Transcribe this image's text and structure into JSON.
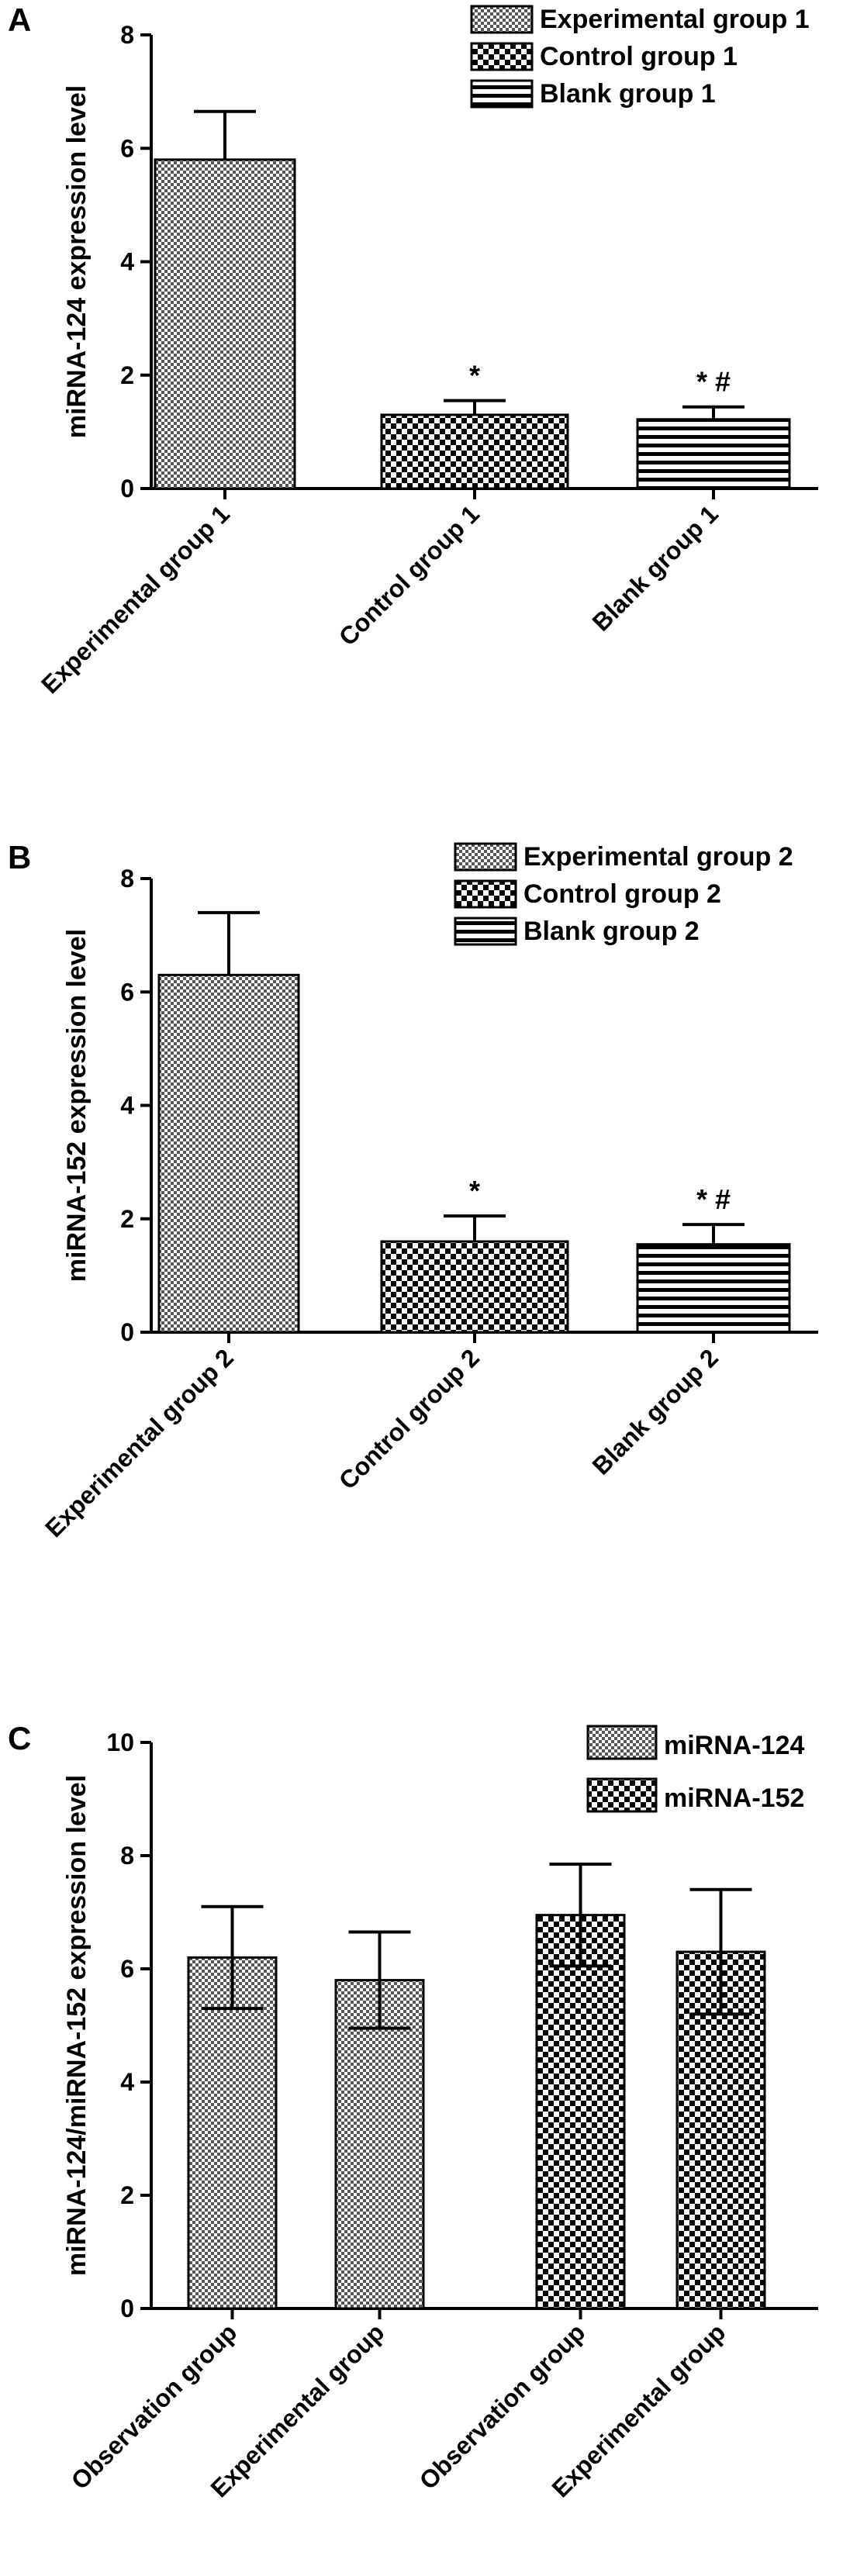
{
  "chart_data": [
    {
      "panel": "A",
      "type": "bar",
      "ylabel": "miRNA-124 expression level",
      "ylim": [
        0,
        8
      ],
      "yticks": [
        0,
        2,
        4,
        6,
        8
      ],
      "categories": [
        "Experimental group 1",
        "Control group 1",
        "Blank group 1"
      ],
      "values": [
        5.8,
        1.3,
        1.22
      ],
      "errors": [
        0.85,
        0.25,
        0.22
      ],
      "patterns": [
        "checker-fine",
        "checker-coarse",
        "horizontal"
      ],
      "annotations": [
        "",
        "*",
        "* #"
      ],
      "legend": [
        "Experimental group 1",
        "Control group 1",
        "Blank group 1"
      ],
      "legend_position": "top-right",
      "grid": false
    },
    {
      "panel": "B",
      "type": "bar",
      "ylabel": "miRNA-152 expression level",
      "ylim": [
        0,
        8
      ],
      "yticks": [
        0,
        2,
        4,
        6,
        8
      ],
      "categories": [
        "Experimental group 2",
        "Control group 2",
        "Blank group 2"
      ],
      "values": [
        6.3,
        1.6,
        1.55
      ],
      "errors": [
        1.1,
        0.45,
        0.35
      ],
      "patterns": [
        "checker-fine",
        "checker-coarse",
        "horizontal"
      ],
      "annotations": [
        "",
        "*",
        "* #"
      ],
      "legend": [
        "Experimental group 2",
        "Control group 2",
        "Blank group 2"
      ],
      "legend_position": "top-right",
      "grid": false
    },
    {
      "panel": "C",
      "type": "bar",
      "ylabel": "miRNA-124/miRNA-152 expression level",
      "ylim": [
        0,
        10
      ],
      "yticks": [
        0,
        2,
        4,
        6,
        8,
        10
      ],
      "categories": [
        "Observation group",
        "Experimental group",
        "Observation group",
        "Experimental group"
      ],
      "values": [
        6.2,
        5.8,
        6.95,
        6.3
      ],
      "errors": [
        0.9,
        0.85,
        0.9,
        1.1
      ],
      "patterns": [
        "checker-fine",
        "checker-fine",
        "checker-coarse",
        "checker-coarse"
      ],
      "annotations": [
        "",
        "",
        "",
        ""
      ],
      "legend": [
        "miRNA-124",
        "miRNA-152"
      ],
      "legend_patterns": [
        "checker-fine",
        "checker-coarse"
      ],
      "legend_position": "top-right",
      "grid": false
    }
  ]
}
